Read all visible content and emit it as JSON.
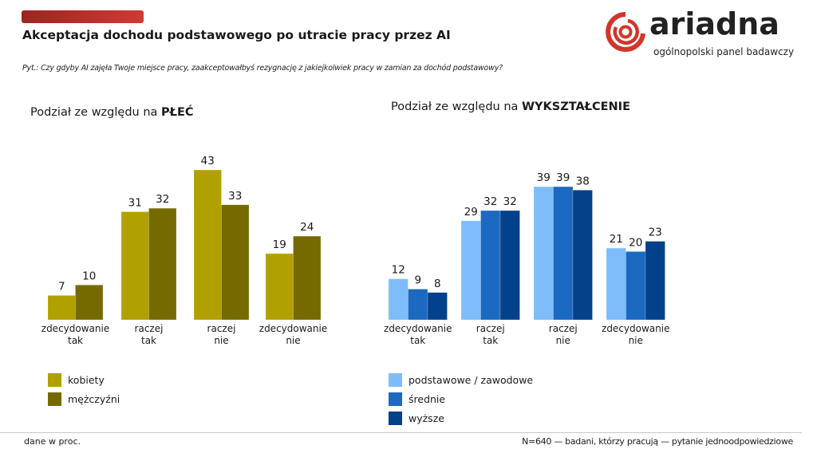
{
  "header": {
    "title": "Akceptacja dochodu podstawowego po utracie pracy przez AI",
    "question": "Pyt.: Czy gdyby AI zajęła Twoje miejsce pracy, zaakceptowałbyś rezygnację z jakiejkolwiek pracy w zamian za dochód podstawowy?",
    "accent_color": "#c4332c"
  },
  "logo": {
    "word": "ariadna",
    "tagline": "ogólnopolski panel badawczy",
    "color": "#d2352b"
  },
  "footer": {
    "left": "dane w proc.",
    "right": "N=640 — badani, którzy pracują — pytanie jednoodpowiedziowe"
  },
  "chart_data": [
    {
      "type": "bar",
      "title_prefix": "Podział ze względu na ",
      "title_bold": "PŁEĆ",
      "categories": [
        [
          "zdecydowanie",
          "tak"
        ],
        [
          "raczej",
          "tak"
        ],
        [
          "raczej",
          "nie"
        ],
        [
          "zdecydowanie",
          "nie"
        ]
      ],
      "series": [
        {
          "name": "kobiety",
          "color": "#b0a000",
          "values": [
            7,
            31,
            43,
            19
          ]
        },
        {
          "name": "mężczyźni",
          "color": "#756a00",
          "values": [
            10,
            32,
            33,
            24
          ]
        }
      ],
      "ylim": [
        0,
        45
      ],
      "grid": false,
      "legend": "bottom-left"
    },
    {
      "type": "bar",
      "title_prefix": "Podział ze względu na ",
      "title_bold": "WYKSZTAŁCENIE",
      "categories": [
        [
          "zdecydowanie",
          "tak"
        ],
        [
          "raczej",
          "tak"
        ],
        [
          "raczej",
          "nie"
        ],
        [
          "zdecydowanie",
          "nie"
        ]
      ],
      "series": [
        {
          "name": "podstawowe / zawodowe",
          "color": "#7fbcfb",
          "values": [
            12,
            29,
            39,
            21
          ]
        },
        {
          "name": "średnie",
          "color": "#1b69c0",
          "values": [
            9,
            32,
            39,
            20
          ]
        },
        {
          "name": "wyższe",
          "color": "#03418a",
          "values": [
            8,
            32,
            38,
            23
          ]
        }
      ],
      "ylim": [
        0,
        45
      ],
      "grid": false,
      "legend": "bottom-left"
    }
  ]
}
